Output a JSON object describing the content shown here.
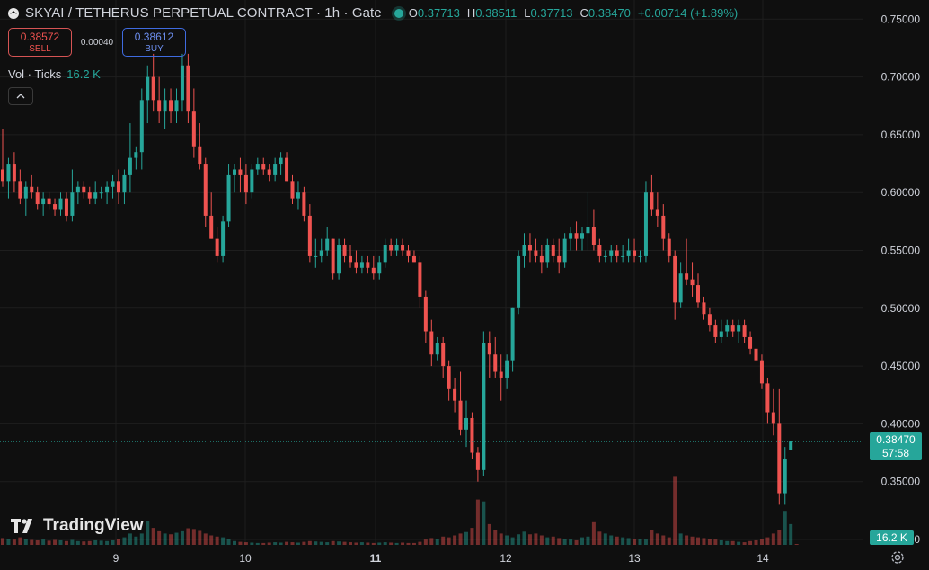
{
  "header": {
    "title": "SKYAI / TETHERUS PERPETUAL CONTRACT · 1h · Gate",
    "ohlc": [
      {
        "key": "O",
        "value": "0.37713"
      },
      {
        "key": "H",
        "value": "0.38511"
      },
      {
        "key": "L",
        "value": "0.37713"
      },
      {
        "key": "C",
        "value": "0.38470"
      }
    ],
    "change": "+0.00714 (+1.89%)"
  },
  "trade": {
    "sell_price": "0.38572",
    "sell_label": "SELL",
    "spread": "0.00040",
    "buy_price": "0.38612",
    "buy_label": "BUY"
  },
  "volume_legend": {
    "label": "Vol · Ticks",
    "value": "16.2 K"
  },
  "branding": {
    "logo_text": "TradingView"
  },
  "price_axis": {
    "ticks": [
      "0.75000",
      "0.70000",
      "0.65000",
      "0.60000",
      "0.55000",
      "0.50000",
      "0.45000",
      "0.40000",
      "0.35000",
      "0.30000"
    ]
  },
  "time_axis": {
    "ticks": [
      {
        "label": "9",
        "bold": false
      },
      {
        "label": "10",
        "bold": false
      },
      {
        "label": "11",
        "bold": true
      },
      {
        "label": "12",
        "bold": false
      },
      {
        "label": "13",
        "bold": false
      },
      {
        "label": "14",
        "bold": false
      }
    ]
  },
  "last_price_tag": {
    "price": "0.38470",
    "countdown": "57:58"
  },
  "volume_tag": "16.2 K",
  "colors": {
    "up": "#26a69a",
    "down": "#ef5350",
    "background": "#0f0f0f",
    "grid": "#1e1e1e",
    "text": "#d1d4dc"
  },
  "icons": {
    "symbol": "skyai-logo-icon",
    "status": "market-status-dot-icon",
    "collapse": "chevron-up-icon",
    "settings": "settings-gear-icon"
  },
  "chart_data": {
    "type": "candlestick",
    "timeframe": "1h",
    "ylim": [
      0.3,
      0.75
    ],
    "x_ticks": [
      "9",
      "10",
      "11",
      "12",
      "13",
      "14"
    ],
    "last_price": 0.3847,
    "candles": [
      [
        0.62,
        0.655,
        0.605,
        0.61
      ],
      [
        0.61,
        0.63,
        0.595,
        0.625
      ],
      [
        0.625,
        0.635,
        0.6,
        0.61
      ],
      [
        0.61,
        0.62,
        0.59,
        0.595
      ],
      [
        0.595,
        0.61,
        0.58,
        0.605
      ],
      [
        0.605,
        0.615,
        0.595,
        0.6
      ],
      [
        0.6,
        0.605,
        0.585,
        0.59
      ],
      [
        0.59,
        0.6,
        0.58,
        0.595
      ],
      [
        0.595,
        0.6,
        0.585,
        0.59
      ],
      [
        0.59,
        0.595,
        0.58,
        0.585
      ],
      [
        0.585,
        0.6,
        0.58,
        0.595
      ],
      [
        0.595,
        0.6,
        0.575,
        0.58
      ],
      [
        0.58,
        0.62,
        0.575,
        0.6
      ],
      [
        0.6,
        0.61,
        0.59,
        0.605
      ],
      [
        0.605,
        0.61,
        0.595,
        0.6
      ],
      [
        0.6,
        0.605,
        0.59,
        0.595
      ],
      [
        0.595,
        0.61,
        0.59,
        0.6
      ],
      [
        0.6,
        0.605,
        0.595,
        0.6
      ],
      [
        0.6,
        0.61,
        0.59,
        0.605
      ],
      [
        0.605,
        0.615,
        0.595,
        0.61
      ],
      [
        0.61,
        0.62,
        0.59,
        0.6
      ],
      [
        0.6,
        0.62,
        0.59,
        0.615
      ],
      [
        0.615,
        0.66,
        0.6,
        0.63
      ],
      [
        0.63,
        0.64,
        0.62,
        0.635
      ],
      [
        0.635,
        0.69,
        0.62,
        0.68
      ],
      [
        0.68,
        0.71,
        0.66,
        0.7
      ],
      [
        0.7,
        0.72,
        0.67,
        0.68
      ],
      [
        0.68,
        0.7,
        0.66,
        0.67
      ],
      [
        0.67,
        0.69,
        0.655,
        0.68
      ],
      [
        0.68,
        0.69,
        0.66,
        0.67
      ],
      [
        0.67,
        0.69,
        0.66,
        0.68
      ],
      [
        0.68,
        0.72,
        0.67,
        0.71
      ],
      [
        0.71,
        0.72,
        0.66,
        0.67
      ],
      [
        0.67,
        0.69,
        0.63,
        0.64
      ],
      [
        0.64,
        0.66,
        0.62,
        0.625
      ],
      [
        0.625,
        0.63,
        0.57,
        0.58
      ],
      [
        0.58,
        0.6,
        0.56,
        0.56
      ],
      [
        0.56,
        0.57,
        0.54,
        0.545
      ],
      [
        0.545,
        0.58,
        0.54,
        0.575
      ],
      [
        0.575,
        0.625,
        0.57,
        0.615
      ],
      [
        0.615,
        0.625,
        0.6,
        0.62
      ],
      [
        0.62,
        0.63,
        0.6,
        0.615
      ],
      [
        0.615,
        0.625,
        0.59,
        0.6
      ],
      [
        0.6,
        0.625,
        0.595,
        0.62
      ],
      [
        0.62,
        0.63,
        0.615,
        0.625
      ],
      [
        0.625,
        0.63,
        0.615,
        0.62
      ],
      [
        0.62,
        0.625,
        0.61,
        0.615
      ],
      [
        0.615,
        0.63,
        0.61,
        0.625
      ],
      [
        0.625,
        0.635,
        0.615,
        0.63
      ],
      [
        0.63,
        0.635,
        0.61,
        0.61
      ],
      [
        0.61,
        0.615,
        0.59,
        0.595
      ],
      [
        0.595,
        0.61,
        0.585,
        0.6
      ],
      [
        0.6,
        0.605,
        0.575,
        0.58
      ],
      [
        0.58,
        0.59,
        0.54,
        0.545
      ],
      [
        0.545,
        0.56,
        0.535,
        0.545
      ],
      [
        0.545,
        0.56,
        0.54,
        0.55
      ],
      [
        0.55,
        0.57,
        0.545,
        0.56
      ],
      [
        0.56,
        0.56,
        0.525,
        0.53
      ],
      [
        0.53,
        0.56,
        0.525,
        0.555
      ],
      [
        0.555,
        0.56,
        0.54,
        0.545
      ],
      [
        0.545,
        0.555,
        0.535,
        0.54
      ],
      [
        0.54,
        0.55,
        0.53,
        0.535
      ],
      [
        0.535,
        0.545,
        0.53,
        0.54
      ],
      [
        0.54,
        0.545,
        0.53,
        0.535
      ],
      [
        0.535,
        0.545,
        0.525,
        0.53
      ],
      [
        0.53,
        0.545,
        0.525,
        0.54
      ],
      [
        0.54,
        0.56,
        0.535,
        0.555
      ],
      [
        0.555,
        0.56,
        0.545,
        0.55
      ],
      [
        0.55,
        0.56,
        0.545,
        0.555
      ],
      [
        0.555,
        0.56,
        0.545,
        0.55
      ],
      [
        0.55,
        0.555,
        0.54,
        0.545
      ],
      [
        0.545,
        0.55,
        0.54,
        0.54
      ],
      [
        0.54,
        0.545,
        0.5,
        0.51
      ],
      [
        0.51,
        0.515,
        0.47,
        0.48
      ],
      [
        0.48,
        0.49,
        0.45,
        0.46
      ],
      [
        0.46,
        0.475,
        0.455,
        0.47
      ],
      [
        0.47,
        0.475,
        0.44,
        0.45
      ],
      [
        0.45,
        0.455,
        0.42,
        0.43
      ],
      [
        0.43,
        0.44,
        0.41,
        0.42
      ],
      [
        0.42,
        0.445,
        0.39,
        0.395
      ],
      [
        0.395,
        0.42,
        0.38,
        0.405
      ],
      [
        0.405,
        0.41,
        0.37,
        0.375
      ],
      [
        0.375,
        0.38,
        0.35,
        0.36
      ],
      [
        0.36,
        0.48,
        0.355,
        0.47
      ],
      [
        0.47,
        0.48,
        0.44,
        0.46
      ],
      [
        0.46,
        0.475,
        0.44,
        0.445
      ],
      [
        0.445,
        0.46,
        0.42,
        0.44
      ],
      [
        0.44,
        0.46,
        0.43,
        0.455
      ],
      [
        0.455,
        0.5,
        0.445,
        0.5
      ],
      [
        0.5,
        0.55,
        0.495,
        0.545
      ],
      [
        0.545,
        0.565,
        0.535,
        0.555
      ],
      [
        0.555,
        0.565,
        0.54,
        0.55
      ],
      [
        0.55,
        0.56,
        0.54,
        0.545
      ],
      [
        0.545,
        0.555,
        0.53,
        0.54
      ],
      [
        0.54,
        0.56,
        0.535,
        0.555
      ],
      [
        0.555,
        0.56,
        0.54,
        0.545
      ],
      [
        0.545,
        0.56,
        0.53,
        0.54
      ],
      [
        0.54,
        0.565,
        0.535,
        0.56
      ],
      [
        0.56,
        0.57,
        0.55,
        0.565
      ],
      [
        0.565,
        0.575,
        0.55,
        0.56
      ],
      [
        0.56,
        0.57,
        0.55,
        0.565
      ],
      [
        0.565,
        0.6,
        0.55,
        0.57
      ],
      [
        0.57,
        0.585,
        0.55,
        0.555
      ],
      [
        0.555,
        0.56,
        0.54,
        0.545
      ],
      [
        0.545,
        0.55,
        0.54,
        0.545
      ],
      [
        0.545,
        0.555,
        0.54,
        0.55
      ],
      [
        0.55,
        0.555,
        0.54,
        0.545
      ],
      [
        0.545,
        0.555,
        0.54,
        0.545
      ],
      [
        0.545,
        0.56,
        0.54,
        0.55
      ],
      [
        0.55,
        0.56,
        0.54,
        0.545
      ],
      [
        0.545,
        0.55,
        0.54,
        0.545
      ],
      [
        0.545,
        0.61,
        0.54,
        0.6
      ],
      [
        0.6,
        0.615,
        0.58,
        0.585
      ],
      [
        0.585,
        0.6,
        0.57,
        0.58
      ],
      [
        0.58,
        0.59,
        0.55,
        0.56
      ],
      [
        0.56,
        0.565,
        0.54,
        0.545
      ],
      [
        0.545,
        0.55,
        0.49,
        0.505
      ],
      [
        0.505,
        0.54,
        0.5,
        0.53
      ],
      [
        0.53,
        0.56,
        0.52,
        0.525
      ],
      [
        0.525,
        0.54,
        0.51,
        0.52
      ],
      [
        0.52,
        0.53,
        0.5,
        0.505
      ],
      [
        0.505,
        0.51,
        0.49,
        0.495
      ],
      [
        0.495,
        0.5,
        0.48,
        0.485
      ],
      [
        0.485,
        0.49,
        0.47,
        0.475
      ],
      [
        0.475,
        0.49,
        0.47,
        0.48
      ],
      [
        0.48,
        0.49,
        0.475,
        0.485
      ],
      [
        0.485,
        0.49,
        0.475,
        0.48
      ],
      [
        0.48,
        0.49,
        0.47,
        0.485
      ],
      [
        0.485,
        0.49,
        0.47,
        0.475
      ],
      [
        0.475,
        0.48,
        0.46,
        0.465
      ],
      [
        0.465,
        0.47,
        0.45,
        0.455
      ],
      [
        0.455,
        0.46,
        0.43,
        0.435
      ],
      [
        0.435,
        0.44,
        0.4,
        0.41
      ],
      [
        0.41,
        0.43,
        0.39,
        0.4
      ],
      [
        0.4,
        0.43,
        0.33,
        0.34
      ],
      [
        0.34,
        0.38,
        0.33,
        0.37
      ],
      [
        0.377,
        0.385,
        0.377,
        0.3847
      ]
    ],
    "volumes": [
      0.18,
      0.16,
      0.14,
      0.2,
      0.15,
      0.13,
      0.12,
      0.14,
      0.11,
      0.13,
      0.12,
      0.1,
      0.13,
      0.1,
      0.09,
      0.1,
      0.12,
      0.11,
      0.1,
      0.12,
      0.15,
      0.2,
      0.3,
      0.22,
      0.3,
      0.62,
      0.45,
      0.36,
      0.3,
      0.28,
      0.32,
      0.36,
      0.44,
      0.42,
      0.37,
      0.3,
      0.25,
      0.22,
      0.2,
      0.16,
      0.1,
      0.08,
      0.07,
      0.06,
      0.05,
      0.05,
      0.06,
      0.07,
      0.06,
      0.08,
      0.07,
      0.06,
      0.08,
      0.1,
      0.09,
      0.08,
      0.07,
      0.1,
      0.09,
      0.08,
      0.07,
      0.06,
      0.07,
      0.06,
      0.05,
      0.06,
      0.07,
      0.06,
      0.05,
      0.06,
      0.05,
      0.05,
      0.08,
      0.14,
      0.18,
      0.16,
      0.22,
      0.2,
      0.25,
      0.3,
      0.34,
      0.45,
      1.2,
      1.15,
      0.55,
      0.4,
      0.3,
      0.25,
      0.2,
      0.28,
      0.35,
      0.28,
      0.3,
      0.25,
      0.2,
      0.22,
      0.18,
      0.16,
      0.14,
      0.12,
      0.2,
      0.22,
      0.6,
      0.35,
      0.3,
      0.25,
      0.22,
      0.2,
      0.18,
      0.16,
      0.15,
      0.14,
      0.4,
      0.3,
      0.25,
      0.2,
      1.8,
      0.3,
      0.25,
      0.22,
      0.2,
      0.18,
      0.16,
      0.14,
      0.12,
      0.1,
      0.1,
      0.08,
      0.07,
      0.1,
      0.12,
      0.15,
      0.2,
      0.3,
      0.4,
      0.9,
      0.55,
      0.02
    ]
  }
}
